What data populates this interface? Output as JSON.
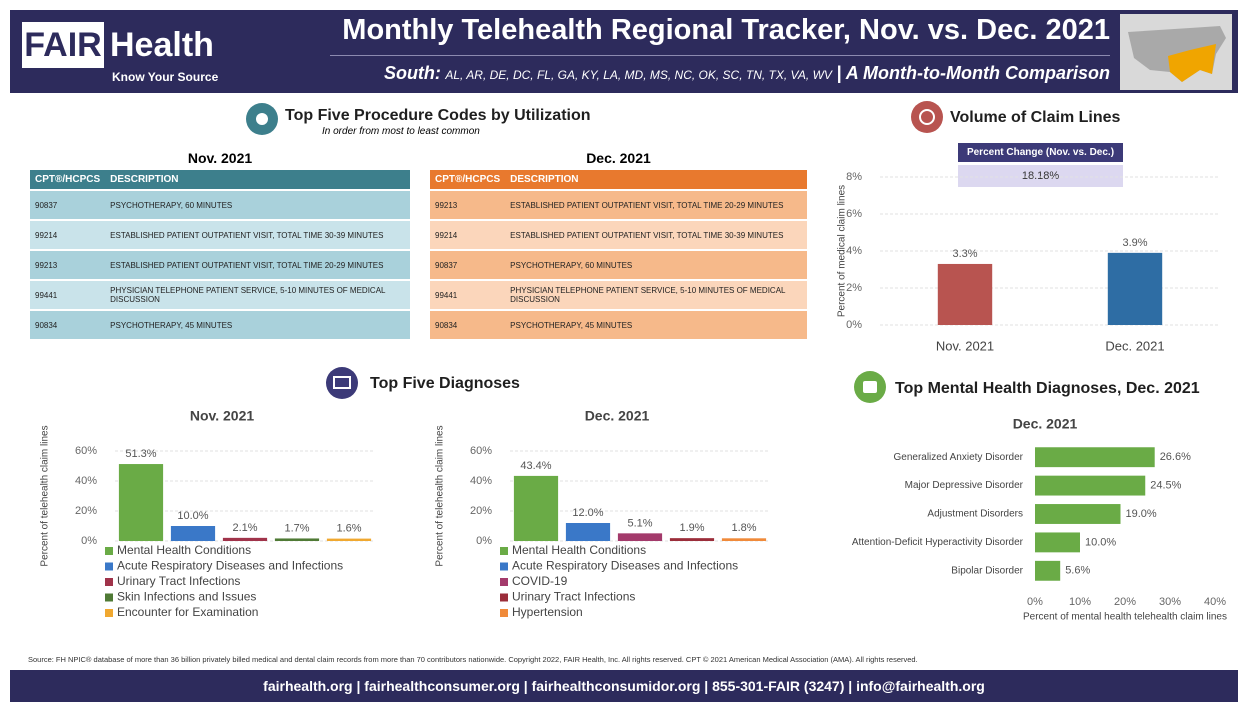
{
  "header": {
    "logo_fair": "FAIR",
    "logo_health": "Health",
    "logo_tagline": "Know Your Source",
    "title": "Monthly Telehealth Regional Tracker, Nov. vs. Dec. 2021",
    "region": "South:",
    "states": "AL, AR, DE, DC, FL, GA, KY, LA, MD, MS, NC, OK, SC, TN, TX, VA, WV",
    "subtitle": "| A Month-to-Month Comparison"
  },
  "procedures": {
    "title": "Top Five Procedure Codes by Utilization",
    "subtitle": "In order from most to least common",
    "tables": [
      {
        "title": "Nov. 2021",
        "header_color": "#3d7f8c",
        "row_colors": [
          "#a9d1db",
          "#c9e3ea"
        ],
        "columns": [
          "CPT®/HCPCS",
          "DESCRIPTION"
        ],
        "rows": [
          [
            "90837",
            "PSYCHOTHERAPY, 60 MINUTES"
          ],
          [
            "99214",
            "ESTABLISHED PATIENT OUTPATIENT VISIT, TOTAL TIME 30-39 MINUTES"
          ],
          [
            "99213",
            "ESTABLISHED PATIENT OUTPATIENT VISIT, TOTAL TIME 20-29 MINUTES"
          ],
          [
            "99441",
            "PHYSICIAN TELEPHONE PATIENT SERVICE, 5-10 MINUTES OF MEDICAL DISCUSSION"
          ],
          [
            "90834",
            "PSYCHOTHERAPY, 45 MINUTES"
          ]
        ]
      },
      {
        "title": "Dec. 2021",
        "header_color": "#e8792e",
        "row_colors": [
          "#f6b98a",
          "#fbd6bb"
        ],
        "columns": [
          "CPT®/HCPCS",
          "DESCRIPTION"
        ],
        "rows": [
          [
            "99213",
            "ESTABLISHED PATIENT OUTPATIENT VISIT, TOTAL TIME 20-29 MINUTES"
          ],
          [
            "99214",
            "ESTABLISHED PATIENT OUTPATIENT VISIT, TOTAL TIME 30-39 MINUTES"
          ],
          [
            "90837",
            "PSYCHOTHERAPY, 60 MINUTES"
          ],
          [
            "99441",
            "PHYSICIAN TELEPHONE PATIENT SERVICE, 5-10 MINUTES OF MEDICAL DISCUSSION"
          ],
          [
            "90834",
            "PSYCHOTHERAPY, 45 MINUTES"
          ]
        ]
      }
    ]
  },
  "claim_volume": {
    "title": "Volume of Claim Lines",
    "change_label": "Percent Change (Nov. vs. Dec.)",
    "change_value": "18.18%"
  },
  "diagnoses": {
    "title": "Top Five Diagnoses"
  },
  "mental_health": {
    "title": "Top Mental Health Diagnoses, Dec. 2021"
  },
  "chart_data": [
    {
      "type": "bar",
      "ylabel": "Percent of medical claim lines",
      "categories": [
        "Nov. 2021",
        "Dec. 2021"
      ],
      "values": [
        3.3,
        3.9
      ],
      "value_labels": [
        "3.3%",
        "3.9%"
      ],
      "colors": [
        "#b85450",
        "#2e6da4"
      ],
      "ylim": [
        0,
        8
      ],
      "yticks": [
        {
          "value": 0,
          "label": "0%"
        },
        {
          "value": 2,
          "label": "2%"
        },
        {
          "value": 4,
          "label": "4%"
        },
        {
          "value": 6,
          "label": "6%"
        },
        {
          "value": 8,
          "label": "8%"
        }
      ],
      "grid": true,
      "legend": false
    },
    {
      "type": "bar",
      "title": "Nov. 2021",
      "ylabel": "Percent of telehealth claim lines",
      "categories": [
        "Mental Health Conditions",
        "Acute Respiratory Diseases and Infections",
        "Urinary Tract Infections",
        "Skin Infections and Issues",
        "Encounter for Examination"
      ],
      "values": [
        51.3,
        10.0,
        2.1,
        1.7,
        1.6
      ],
      "value_labels": [
        "51.3%",
        "10.0%",
        "2.1%",
        "1.7%",
        "1.6%"
      ],
      "colors": [
        "#6aab46",
        "#3a78c8",
        "#a0334a",
        "#4f7a35",
        "#f0a830"
      ],
      "ylim": [
        0,
        60
      ],
      "yticks": [
        {
          "value": 0,
          "label": "0%"
        },
        {
          "value": 20,
          "label": "20%"
        },
        {
          "value": 40,
          "label": "40%"
        },
        {
          "value": 60,
          "label": "60%"
        }
      ],
      "grid": true,
      "legend": true
    },
    {
      "type": "bar",
      "title": "Dec. 2021",
      "ylabel": "Percent of telehealth claim lines",
      "categories": [
        "Mental Health Conditions",
        "Acute Respiratory Diseases and Infections",
        "COVID-19",
        "Urinary Tract Infections",
        "Hypertension"
      ],
      "values": [
        43.4,
        12.0,
        5.1,
        1.9,
        1.8
      ],
      "value_labels": [
        "43.4%",
        "12.0%",
        "5.1%",
        "1.9%",
        "1.8%"
      ],
      "colors": [
        "#6aab46",
        "#3a78c8",
        "#a33a6b",
        "#9b2d3a",
        "#f08a3a"
      ],
      "ylim": [
        0,
        60
      ],
      "yticks": [
        {
          "value": 0,
          "label": "0%"
        },
        {
          "value": 20,
          "label": "20%"
        },
        {
          "value": 40,
          "label": "40%"
        },
        {
          "value": 60,
          "label": "60%"
        }
      ],
      "grid": true,
      "legend": true
    },
    {
      "type": "hbar",
      "title": "Dec. 2021",
      "xlabel": "Percent of mental health telehealth claim lines",
      "categories": [
        "Generalized Anxiety Disorder",
        "Major Depressive Disorder",
        "Adjustment Disorders",
        "Attention-Deficit Hyperactivity Disorder",
        "Bipolar Disorder"
      ],
      "values": [
        26.6,
        24.5,
        19.0,
        10.0,
        5.6
      ],
      "value_labels": [
        "26.6%",
        "24.5%",
        "19.0%",
        "10.0%",
        "5.6%"
      ],
      "color": "#6aab46",
      "xlim": [
        0,
        40
      ],
      "xticks": [
        {
          "value": 0,
          "label": "0%"
        },
        {
          "value": 10,
          "label": "10%"
        },
        {
          "value": 20,
          "label": "20%"
        },
        {
          "value": 30,
          "label": "30%"
        },
        {
          "value": 40,
          "label": "40%"
        }
      ],
      "grid": false
    }
  ],
  "footer": {
    "source": "Source: FH NPIC® database of more than 36 billion privately billed medical and dental claim records from more than 70 contributors nationwide. Copyright 2022, FAIR Health, Inc. All rights reserved. CPT © 2021 American Medical Association (AMA). All rights reserved.",
    "contact": "fairhealth.org | fairhealthconsumer.org | fairhealthconsumidor.org | 855-301-FAIR (3247) | info@fairhealth.org"
  }
}
